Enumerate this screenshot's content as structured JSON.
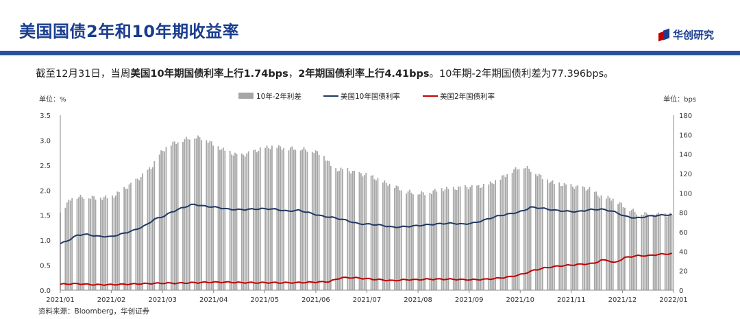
{
  "header": {
    "title": "美国国债2年和10年期收益率",
    "brand": "华创研究"
  },
  "summary": {
    "p1": "截至12月31日，当周",
    "b1": "美国10年期国债利率上行1.74bps",
    "p2": "，",
    "b2": "2年期国债利率上行4.41bps",
    "p3": "。10年期-2年期国债利差为77.396bps。"
  },
  "source": "资料来源：Bloomberg，华创证券",
  "colors": {
    "title": "#1a3d8f",
    "bar": "#a6a6a6",
    "us10y": "#1f3864",
    "us2y": "#c00000"
  },
  "chart_data": {
    "type": "bar+line",
    "left_axis_unit": "单位：%",
    "right_axis_unit": "单位：bps",
    "left_ylim": [
      0,
      3.5
    ],
    "right_ylim": [
      0,
      180
    ],
    "left_ticks": [
      "0.0",
      "0.5",
      "1.0",
      "1.5",
      "2.0",
      "2.5",
      "3.0",
      "3.5"
    ],
    "right_ticks": [
      "0",
      "20",
      "40",
      "60",
      "80",
      "100",
      "120",
      "140",
      "160",
      "180"
    ],
    "x_ticks": [
      "2021/01",
      "2021/02",
      "2021/03",
      "2021/04",
      "2021/05",
      "2021/06",
      "2021/07",
      "2021/08",
      "2021/09",
      "2021/10",
      "2021/11",
      "2021/12",
      "2022/01"
    ],
    "legend": [
      {
        "name": "10年-2年利差",
        "kind": "bar"
      },
      {
        "name": "美国10年国债利率",
        "kind": "line"
      },
      {
        "name": "美国2年国债利率",
        "kind": "line"
      }
    ],
    "x_start": "2021-01-01",
    "x_end": "2022-01-01",
    "series": [
      {
        "name": "10年-2年利差",
        "axis": "right",
        "values": [
          [
            0,
            80
          ],
          [
            7,
            96
          ],
          [
            15,
            96
          ],
          [
            23,
            95
          ],
          [
            31,
            96
          ],
          [
            38,
            104
          ],
          [
            43,
            110
          ],
          [
            49,
            118
          ],
          [
            55,
            128
          ],
          [
            59,
            140
          ],
          [
            65,
            150
          ],
          [
            72,
            154
          ],
          [
            79,
            158
          ],
          [
            86,
            156
          ],
          [
            93,
            148
          ],
          [
            100,
            142
          ],
          [
            107,
            138
          ],
          [
            114,
            142
          ],
          [
            121,
            146
          ],
          [
            128,
            148
          ],
          [
            135,
            146
          ],
          [
            142,
            146
          ],
          [
            149,
            144
          ],
          [
            156,
            140
          ],
          [
            163,
            124
          ],
          [
            170,
            124
          ],
          [
            177,
            120
          ],
          [
            184,
            118
          ],
          [
            191,
            112
          ],
          [
            198,
            108
          ],
          [
            205,
            102
          ],
          [
            212,
            100
          ],
          [
            219,
            100
          ],
          [
            226,
            104
          ],
          [
            233,
            104
          ],
          [
            240,
            106
          ],
          [
            247,
            106
          ],
          [
            254,
            108
          ],
          [
            261,
            114
          ],
          [
            268,
            122
          ],
          [
            275,
            128
          ],
          [
            280,
            124
          ],
          [
            287,
            116
          ],
          [
            294,
            110
          ],
          [
            301,
            108
          ],
          [
            308,
            106
          ],
          [
            315,
            104
          ],
          [
            322,
            96
          ],
          [
            329,
            94
          ],
          [
            336,
            86
          ],
          [
            343,
            80
          ],
          [
            350,
            78
          ],
          [
            357,
            78
          ],
          [
            364,
            77.4
          ]
        ]
      },
      {
        "name": "美国10年国债利率",
        "axis": "left",
        "values": [
          [
            0,
            0.93
          ],
          [
            5,
            1.0
          ],
          [
            10,
            1.1
          ],
          [
            15,
            1.12
          ],
          [
            22,
            1.08
          ],
          [
            30,
            1.07
          ],
          [
            37,
            1.13
          ],
          [
            44,
            1.2
          ],
          [
            51,
            1.3
          ],
          [
            56,
            1.42
          ],
          [
            61,
            1.47
          ],
          [
            66,
            1.56
          ],
          [
            72,
            1.64
          ],
          [
            79,
            1.72
          ],
          [
            86,
            1.68
          ],
          [
            93,
            1.66
          ],
          [
            100,
            1.62
          ],
          [
            107,
            1.61
          ],
          [
            114,
            1.62
          ],
          [
            121,
            1.63
          ],
          [
            128,
            1.62
          ],
          [
            135,
            1.58
          ],
          [
            142,
            1.6
          ],
          [
            149,
            1.54
          ],
          [
            156,
            1.48
          ],
          [
            163,
            1.45
          ],
          [
            170,
            1.4
          ],
          [
            177,
            1.33
          ],
          [
            184,
            1.32
          ],
          [
            191,
            1.3
          ],
          [
            198,
            1.26
          ],
          [
            205,
            1.27
          ],
          [
            212,
            1.29
          ],
          [
            219,
            1.31
          ],
          [
            226,
            1.33
          ],
          [
            233,
            1.34
          ],
          [
            240,
            1.32
          ],
          [
            247,
            1.35
          ],
          [
            254,
            1.42
          ],
          [
            261,
            1.49
          ],
          [
            268,
            1.53
          ],
          [
            275,
            1.58
          ],
          [
            280,
            1.66
          ],
          [
            287,
            1.64
          ],
          [
            294,
            1.6
          ],
          [
            301,
            1.58
          ],
          [
            308,
            1.57
          ],
          [
            315,
            1.61
          ],
          [
            322,
            1.62
          ],
          [
            329,
            1.58
          ],
          [
            336,
            1.48
          ],
          [
            343,
            1.44
          ],
          [
            350,
            1.48
          ],
          [
            357,
            1.5
          ],
          [
            364,
            1.51
          ]
        ]
      },
      {
        "name": "美国2年国债利率",
        "axis": "left",
        "values": [
          [
            0,
            0.12
          ],
          [
            10,
            0.13
          ],
          [
            20,
            0.11
          ],
          [
            30,
            0.11
          ],
          [
            40,
            0.12
          ],
          [
            50,
            0.13
          ],
          [
            60,
            0.14
          ],
          [
            70,
            0.14
          ],
          [
            80,
            0.15
          ],
          [
            90,
            0.16
          ],
          [
            100,
            0.16
          ],
          [
            110,
            0.15
          ],
          [
            120,
            0.15
          ],
          [
            130,
            0.15
          ],
          [
            140,
            0.15
          ],
          [
            150,
            0.16
          ],
          [
            160,
            0.17
          ],
          [
            167,
            0.25
          ],
          [
            175,
            0.25
          ],
          [
            182,
            0.23
          ],
          [
            190,
            0.21
          ],
          [
            198,
            0.19
          ],
          [
            205,
            0.21
          ],
          [
            212,
            0.21
          ],
          [
            219,
            0.22
          ],
          [
            226,
            0.22
          ],
          [
            233,
            0.22
          ],
          [
            240,
            0.21
          ],
          [
            247,
            0.21
          ],
          [
            254,
            0.22
          ],
          [
            261,
            0.24
          ],
          [
            268,
            0.27
          ],
          [
            275,
            0.32
          ],
          [
            282,
            0.4
          ],
          [
            289,
            0.45
          ],
          [
            296,
            0.48
          ],
          [
            303,
            0.5
          ],
          [
            310,
            0.52
          ],
          [
            317,
            0.53
          ],
          [
            322,
            0.6
          ],
          [
            327,
            0.6
          ],
          [
            329,
            0.53
          ],
          [
            336,
            0.65
          ],
          [
            343,
            0.69
          ],
          [
            350,
            0.69
          ],
          [
            357,
            0.72
          ],
          [
            364,
            0.73
          ]
        ]
      }
    ]
  }
}
